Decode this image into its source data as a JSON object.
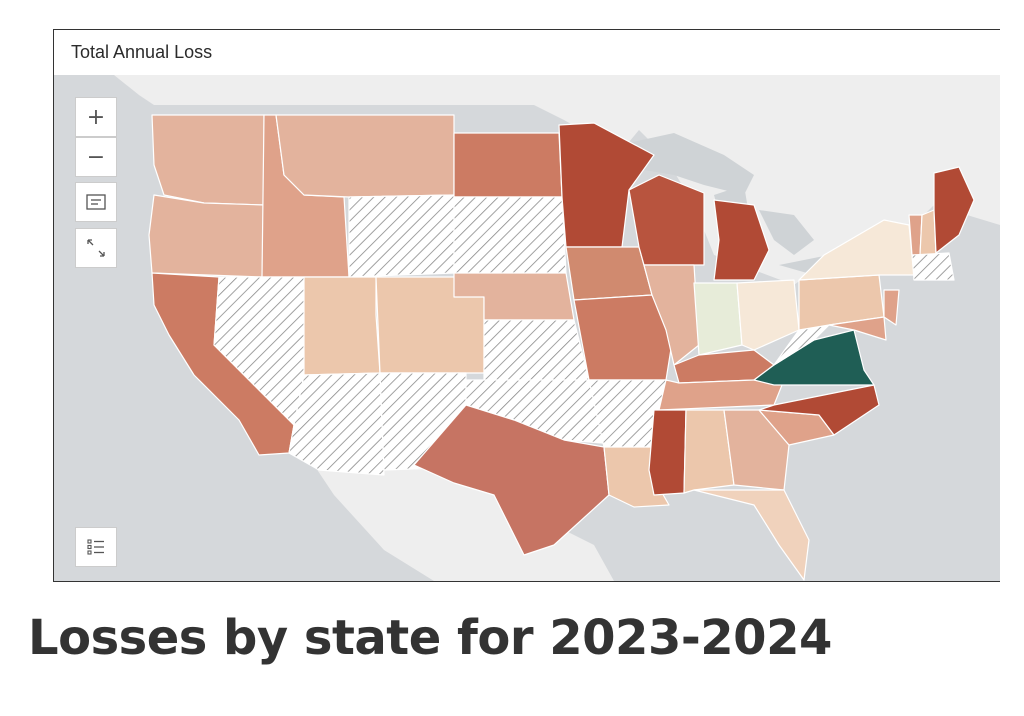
{
  "map": {
    "title": "Total Annual Loss",
    "zoom_in_label": "+",
    "zoom_out_label": "−",
    "colors": {
      "ocean": "#d5d8db",
      "land": "#eeeeee",
      "no_data_hatch": "#8a8a8a",
      "lightest": "#f6e8d8",
      "light": "#ecc7ac",
      "medium_light": "#dfa28a",
      "medium": "#cc7b63",
      "dark": "#b14a35",
      "highlight_green": "#1f5e55",
      "pale_green": "#e7ecd9"
    },
    "controls": [
      "zoom-in",
      "zoom-out",
      "legend",
      "fullscreen",
      "layer-list"
    ]
  },
  "caption": "Losses by state for 2023-2024"
}
